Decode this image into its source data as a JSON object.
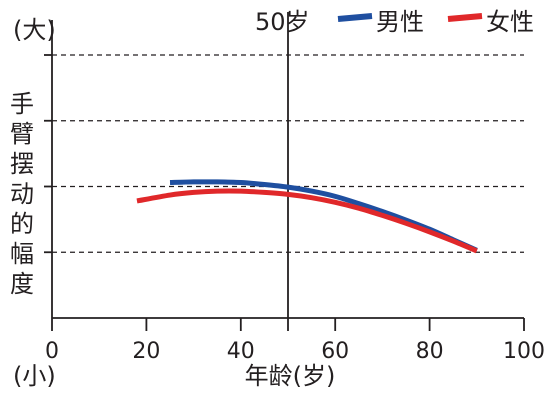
{
  "chart_data": {
    "type": "line",
    "title": "",
    "xlabel": "年龄(岁)",
    "ylabel": "手臂摆动的幅度",
    "y_top_label": "(大)",
    "y_bottom_label": "(小)",
    "xlim": [
      0,
      100
    ],
    "ylim": [
      0,
      4
    ],
    "x_ticks": [
      0,
      20,
      40,
      60,
      80,
      100
    ],
    "y_gridlines": [
      1,
      2,
      3,
      4
    ],
    "grid": "horizontal dashed",
    "legend_position": "top-right",
    "annotation": {
      "label": "50岁",
      "x": 50
    },
    "series": [
      {
        "name": "男性",
        "color": "#1f4fa0",
        "points": [
          [
            25,
            2.06
          ],
          [
            30,
            2.07
          ],
          [
            35,
            2.07
          ],
          [
            40,
            2.06
          ],
          [
            45,
            2.03
          ],
          [
            50,
            1.99
          ],
          [
            55,
            1.93
          ],
          [
            60,
            1.85
          ],
          [
            65,
            1.74
          ],
          [
            70,
            1.62
          ],
          [
            75,
            1.49
          ],
          [
            80,
            1.35
          ],
          [
            85,
            1.19
          ],
          [
            90,
            1.03
          ]
        ]
      },
      {
        "name": "女性",
        "color": "#e0282a",
        "points": [
          [
            18,
            1.78
          ],
          [
            25,
            1.87
          ],
          [
            30,
            1.91
          ],
          [
            35,
            1.93
          ],
          [
            40,
            1.93
          ],
          [
            45,
            1.91
          ],
          [
            50,
            1.88
          ],
          [
            55,
            1.83
          ],
          [
            60,
            1.76
          ],
          [
            65,
            1.67
          ],
          [
            70,
            1.56
          ],
          [
            75,
            1.44
          ],
          [
            80,
            1.31
          ],
          [
            85,
            1.17
          ],
          [
            90,
            1.02
          ]
        ]
      }
    ]
  }
}
